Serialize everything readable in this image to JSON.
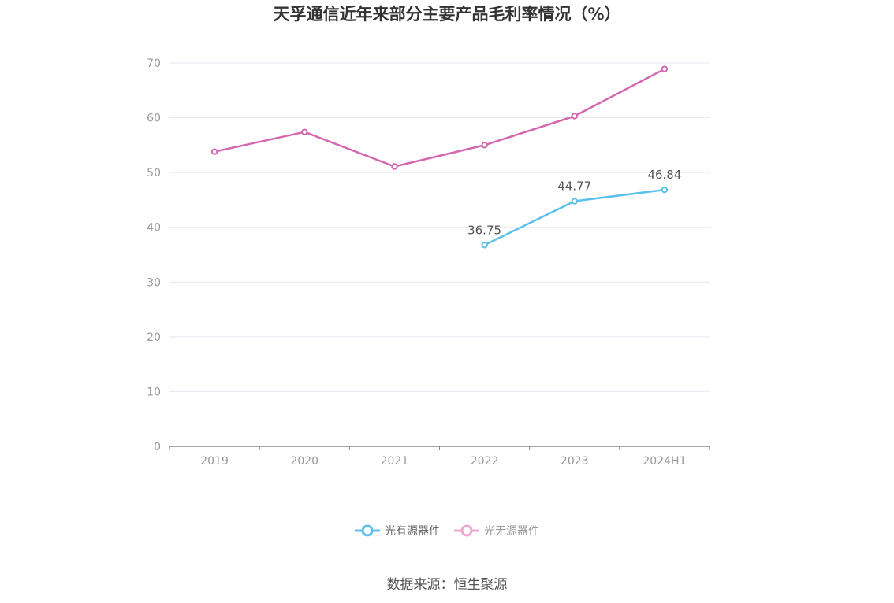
{
  "title": "天孚通信近年来部分主要产品毛利率情况（%）",
  "source": "数据来源：恒生聚源",
  "colors": {
    "series_active": "#5bc0eb",
    "series_inactive": "#f0a8d0",
    "line_pink": "#d468b0",
    "grid": "#e6e8f0",
    "axis": "#888888",
    "tick": "#999999"
  },
  "chart_data": {
    "type": "line",
    "title": "天孚通信近年来部分主要产品毛利率情况（%）",
    "categories": [
      "2019",
      "2020",
      "2021",
      "2022",
      "2023",
      "2024H1"
    ],
    "ylim": [
      0,
      70
    ],
    "yticks": [
      0,
      10,
      20,
      30,
      40,
      50,
      60,
      70
    ],
    "grid": true,
    "legend": "bottom-center",
    "series": [
      {
        "name": "光有源器件",
        "values": [
          null,
          null,
          null,
          36.75,
          44.77,
          46.84
        ],
        "labels": [
          "",
          "",
          "",
          "36.75",
          "44.77",
          "46.84"
        ],
        "color": "#5bc0eb"
      },
      {
        "name": "光无源器件",
        "values": [
          53.8,
          57.4,
          51.1,
          55.0,
          60.3,
          68.9
        ],
        "labels": [
          "",
          "",
          "",
          "",
          "",
          ""
        ],
        "color": "#d468b0",
        "legend_color": "#f0a8d0"
      }
    ]
  }
}
